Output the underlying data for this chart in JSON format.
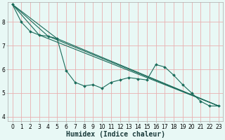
{
  "background_color": "#e8f8f5",
  "grid_color": "#e8b0b0",
  "line_color": "#1a6b5a",
  "marker_color": "#1a6b5a",
  "xlabel": "Humidex (Indice chaleur)",
  "xlabel_fontsize": 7,
  "tick_fontsize": 5.5,
  "xlim": [
    -0.5,
    23.5
  ],
  "ylim": [
    3.8,
    8.85
  ],
  "yticks": [
    4,
    5,
    6,
    7,
    8
  ],
  "xticks": [
    0,
    1,
    2,
    3,
    4,
    5,
    6,
    7,
    8,
    9,
    10,
    11,
    12,
    13,
    14,
    15,
    16,
    17,
    18,
    19,
    20,
    21,
    22,
    23
  ],
  "series": [
    {
      "x": [
        0,
        1,
        2,
        3,
        4,
        5,
        6,
        7,
        8,
        9,
        10,
        11,
        12,
        13,
        14,
        15,
        16,
        17,
        18,
        19,
        20,
        21,
        22,
        23
      ],
      "y": [
        8.75,
        8.0,
        7.6,
        7.45,
        7.4,
        7.3,
        5.95,
        5.45,
        5.3,
        5.35,
        5.2,
        5.45,
        5.55,
        5.65,
        5.6,
        5.55,
        6.2,
        6.1,
        5.75,
        5.35,
        5.0,
        4.65,
        4.45,
        4.45
      ],
      "marker": "D",
      "markersize": 2.0,
      "linewidth": 0.8,
      "has_marker": true
    },
    {
      "x": [
        0,
        4,
        23
      ],
      "y": [
        8.75,
        7.4,
        4.45
      ],
      "marker": null,
      "markersize": 0,
      "linewidth": 0.8,
      "has_marker": false
    },
    {
      "x": [
        0,
        5,
        23
      ],
      "y": [
        8.75,
        7.3,
        4.45
      ],
      "marker": null,
      "markersize": 0,
      "linewidth": 0.8,
      "has_marker": false
    },
    {
      "x": [
        0,
        3,
        23
      ],
      "y": [
        8.75,
        7.45,
        4.45
      ],
      "marker": null,
      "markersize": 0,
      "linewidth": 0.8,
      "has_marker": false
    }
  ]
}
